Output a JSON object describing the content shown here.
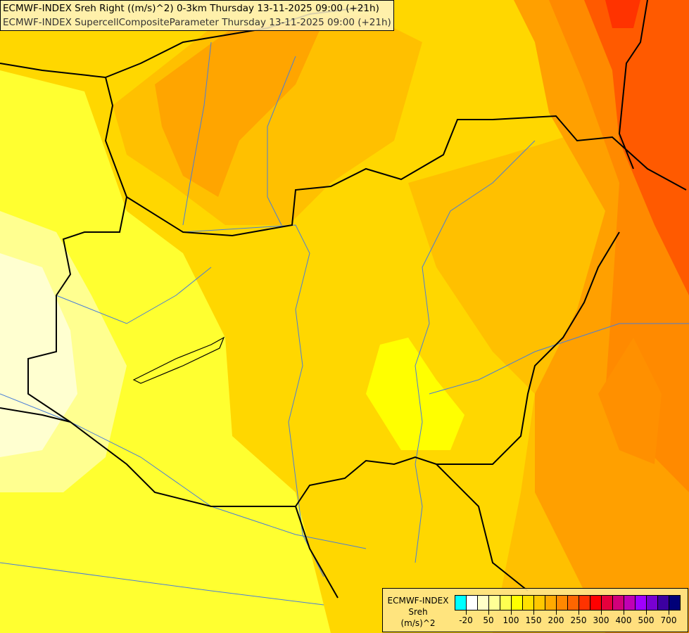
{
  "titles": [
    "ECMWF-INDEX Sreh Right ((m/s)^2) 0-3km Thursday 13-11-2025 09:00 (+21h)",
    "ECMWF-INDEX SupercellCompositeParameter Thursday 13-11-2025 09:00 (+21h)"
  ],
  "legend": {
    "label_lines": [
      "ECMWF-INDEX",
      "Sreh",
      "(m/s)^2"
    ],
    "colors": [
      "#00ffff",
      "#ffffff",
      "#ffffc8",
      "#ffff96",
      "#ffff50",
      "#ffff00",
      "#ffe000",
      "#ffc800",
      "#ffaa00",
      "#ff8800",
      "#ff6600",
      "#ff3300",
      "#ff0000",
      "#e6003c",
      "#d2007a",
      "#c000b4",
      "#a000ff",
      "#7800d2",
      "#3c00a0",
      "#000078"
    ],
    "ticks": [
      "-20",
      "50",
      "100",
      "150",
      "200",
      "250",
      "300",
      "400",
      "500",
      "700"
    ]
  },
  "map_colors": {
    "background": "#ffd700",
    "low": "#ffff00",
    "pale": "#ffffc0",
    "mid": "#ffc200",
    "high": "#ffa800",
    "higher": "#ff8800",
    "highest": "#ff5500",
    "border": "#000000",
    "river": "#4a7ed8"
  }
}
